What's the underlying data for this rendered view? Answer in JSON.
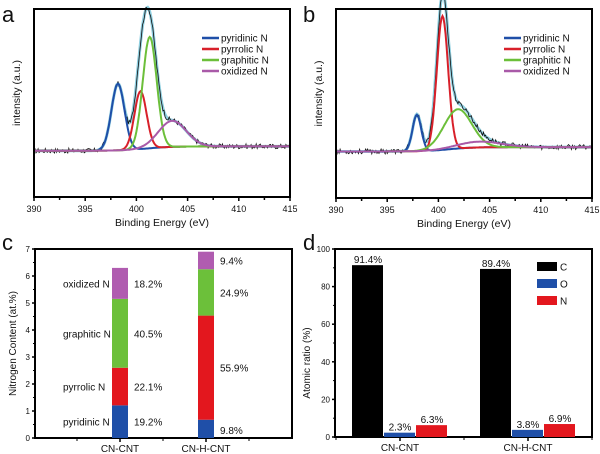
{
  "chart_data": [
    {
      "panel": "a",
      "type": "line",
      "title": "",
      "xlabel": "Binding Energy (eV)",
      "ylabel": "intensity (a.u.)",
      "xlim": [
        390,
        415
      ],
      "xticks": [
        390,
        395,
        400,
        405,
        410,
        415
      ],
      "xtick_labels": [
        "390",
        "395",
        "400",
        "405",
        "410",
        "415"
      ],
      "baseline": 0.12,
      "ylim": [
        -0.2,
        1.1
      ],
      "legend_position": "top-right",
      "legend": [
        "pyridinic N",
        "pyrrolic N",
        "graphitic N",
        "oxidized N"
      ],
      "series": [
        {
          "name": "pyridinic N",
          "center": 398.2,
          "fwhm": 1.5,
          "height": 0.46
        },
        {
          "name": "pyrrolic N",
          "center": 400.4,
          "fwhm": 1.4,
          "height": 0.4
        },
        {
          "name": "graphitic N",
          "center": 401.3,
          "fwhm": 1.6,
          "height": 0.77
        },
        {
          "name": "oxidized N",
          "center": 403.5,
          "fwhm": 3.2,
          "height": 0.18
        }
      ]
    },
    {
      "panel": "b",
      "type": "line",
      "title": "",
      "xlabel": "Binding Energy (eV)",
      "ylabel": "intensity (a.u.)",
      "xlim": [
        390,
        415
      ],
      "xticks": [
        390,
        395,
        400,
        405,
        410,
        415
      ],
      "xtick_labels": [
        "390",
        "395",
        "400",
        "405",
        "410",
        "415"
      ],
      "baseline": 0.12,
      "ylim": [
        -0.2,
        1.1
      ],
      "legend_position": "top-right",
      "legend": [
        "pyridinic N",
        "pyrrolic N",
        "graphitic N",
        "oxidized N"
      ],
      "series": [
        {
          "name": "pyridinic N",
          "center": 397.9,
          "fwhm": 1.0,
          "height": 0.25
        },
        {
          "name": "pyrrolic N",
          "center": 400.4,
          "fwhm": 1.3,
          "height": 0.92
        },
        {
          "name": "graphitic N",
          "center": 401.9,
          "fwhm": 3.2,
          "height": 0.27
        },
        {
          "name": "oxidized N",
          "center": 404.0,
          "fwhm": 5.0,
          "height": 0.04
        }
      ]
    },
    {
      "panel": "c",
      "type": "bar",
      "stacked": true,
      "title": "",
      "xlabel": "",
      "ylabel": "Nitrogen Content (at.%)",
      "ylim": [
        0,
        7
      ],
      "yticks": [
        "0",
        "1",
        "2",
        "3",
        "4",
        "5",
        "6",
        "7"
      ],
      "categories": [
        "CN-CNT",
        "CN-H-CNT"
      ],
      "totals": [
        6.3,
        6.9
      ],
      "series": [
        {
          "name": "pyridinic N",
          "values": [
            19.2,
            9.8
          ],
          "labels": [
            "19.2%",
            "9.8%"
          ]
        },
        {
          "name": "pyrrolic N",
          "values": [
            22.1,
            55.9
          ],
          "labels": [
            "22.1%",
            "55.9%"
          ]
        },
        {
          "name": "graphitic N",
          "values": [
            40.5,
            24.9
          ],
          "labels": [
            "40.5%",
            "24.9%"
          ]
        },
        {
          "name": "oxidized N",
          "values": [
            18.2,
            9.4
          ],
          "labels": [
            "18.2%",
            "9.4%"
          ]
        }
      ],
      "series_annotations": [
        "pyridinic N",
        "pyrrolic N",
        "graphitic N",
        "oxidized N"
      ]
    },
    {
      "panel": "d",
      "type": "bar",
      "title": "",
      "xlabel": "",
      "ylabel": "Atomic ratio (%)",
      "ylim": [
        0,
        100
      ],
      "yticks": [
        "0",
        "20",
        "40",
        "60",
        "80",
        "100"
      ],
      "categories": [
        "CN-CNT",
        "CN-H-CNT"
      ],
      "legend_position": "top-right",
      "legend": [
        "C",
        "O",
        "N"
      ],
      "series": [
        {
          "name": "C",
          "values": [
            91.4,
            89.4
          ],
          "labels": [
            "91.4%",
            "89.4%"
          ]
        },
        {
          "name": "O",
          "values": [
            2.3,
            3.8
          ],
          "labels": [
            "2.3%",
            "3.8%"
          ]
        },
        {
          "name": "N",
          "values": [
            6.3,
            6.9
          ],
          "labels": [
            "6.3%",
            "6.9%"
          ]
        }
      ]
    }
  ],
  "panel_letters": [
    "a",
    "b",
    "c",
    "d"
  ],
  "colors": {
    "pyridinic N": "#1f4fa8",
    "pyrrolic N": "#d8202a",
    "graphitic N": "#6cbf3a",
    "oxidized N": "#a95aa8",
    "envelope": "#8fcfe0",
    "raw": "#111111",
    "bar_pyridinic N": "#1f4fa8",
    "bar_pyrrolic N": "#e3171e",
    "bar_graphitic N": "#6cc03a",
    "bar_oxidized N": "#b05cb0",
    "C": "#000000",
    "O": "#1f4fa8",
    "N": "#e3171e"
  }
}
